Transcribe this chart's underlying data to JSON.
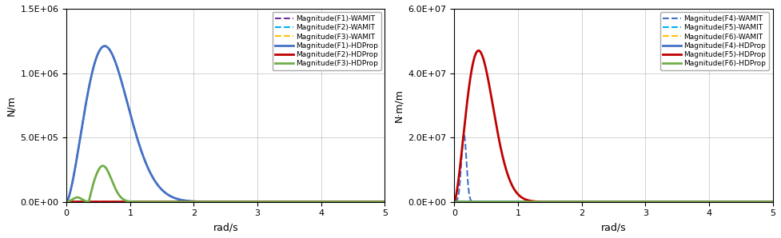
{
  "left": {
    "ylabel": "N/m",
    "xlabel": "rad/s",
    "xlim": [
      0,
      5
    ],
    "ylim": [
      0,
      1500000.0
    ],
    "yticks": [
      0,
      500000.0,
      1000000.0,
      1500000.0
    ],
    "ytick_labels": [
      "0.0E+00",
      "5.0E+05",
      "1.0E+06",
      "1.5E+06"
    ],
    "xticks": [
      0,
      1,
      2,
      3,
      4,
      5
    ]
  },
  "right": {
    "ylabel": "N·m/m",
    "xlabel": "rad/s",
    "xlim": [
      0,
      5
    ],
    "ylim": [
      0,
      60000000.0
    ],
    "yticks": [
      0,
      20000000.0,
      40000000.0,
      60000000.0
    ],
    "ytick_labels": [
      "0.0E+00",
      "2.0E+07",
      "4.0E+07",
      "6.0E+07"
    ],
    "xticks": [
      0,
      1,
      2,
      3,
      4,
      5
    ]
  },
  "colors": {
    "F1_wamit": "#7030A0",
    "F2_wamit": "#00B0F0",
    "F3_wamit": "#FFC000",
    "F1_hdp": "#4472C4",
    "F2_hdp": "#C00000",
    "F3_hdp": "#70AD47",
    "F4_wamit": "#4472C4",
    "F5_wamit": "#00B0F0",
    "F6_wamit": "#FFC000",
    "F4_hdp": "#4472C4",
    "F5_hdp": "#C00000",
    "F6_hdp": "#70AD47"
  }
}
